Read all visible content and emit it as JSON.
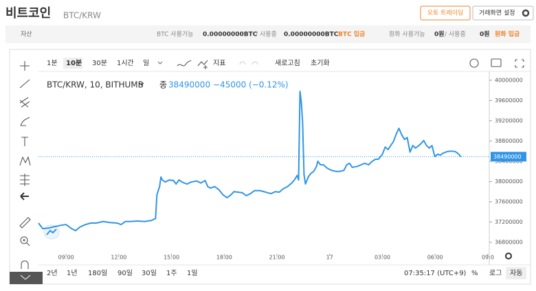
{
  "header": {
    "title": "비트코인",
    "subtitle": "BTC/KRW",
    "buttons": [
      "오토 트레이딩",
      "거래화면 설정"
    ]
  },
  "assets": {
    "label": "자산",
    "btc_available_label": "BTC 사용가능",
    "btc_available": "0.00000000BTC",
    "btc_in_use_label": "/ 사용중",
    "btc_in_use": "0.00000000BTC",
    "btc_deposit": "BTC 입금",
    "krw_available_label": "원화 사용가능",
    "krw_available": "0원",
    "krw_in_use_label": "/ 사용중",
    "krw_in_use": "0원",
    "krw_deposit": "원화 입금"
  },
  "toolbar": {
    "intervals": [
      "1분",
      "10분",
      "30분",
      "1시간",
      "일"
    ],
    "indicators": "지표",
    "refresh": "새로고침",
    "reset": "초기화"
  },
  "chart": {
    "type": "line",
    "legend": "BTC/KRW, 10, BITHUMB",
    "close_label": "종",
    "close": 38490000,
    "change": "−45000 (−0.12%)",
    "color": "#2f95e6",
    "xlim": [
      7.43,
      33.08
    ],
    "ylim": [
      36570000,
      40120000
    ],
    "xticks": [
      {
        "value": 9,
        "label": "09:00"
      },
      {
        "value": 12,
        "label": "12:00"
      },
      {
        "value": 15,
        "label": "15:00"
      },
      {
        "value": 18,
        "label": "18:00"
      },
      {
        "value": 21,
        "label": "21:00"
      },
      {
        "value": 24,
        "label": "17"
      },
      {
        "value": 27,
        "label": "03:00"
      },
      {
        "value": 30,
        "label": "06:00"
      },
      {
        "value": 33,
        "label": "09:0"
      }
    ],
    "yticks": [
      36800000,
      37200000,
      37600000,
      38000000,
      38400000,
      38800000,
      39200000,
      39600000,
      40000000
    ],
    "x": [
      7.43,
      7.67,
      7.98,
      8.37,
      8.77,
      9.0,
      9.31,
      9.55,
      9.78,
      10.1,
      10.41,
      10.72,
      11.11,
      11.5,
      11.9,
      12.13,
      12.37,
      12.68,
      13.07,
      13.46,
      13.85,
      14.09,
      14.17,
      14.32,
      14.4,
      14.48,
      14.64,
      14.87,
      15.11,
      15.26,
      15.42,
      15.65,
      15.89,
      16.12,
      16.44,
      16.67,
      16.91,
      17.06,
      17.22,
      17.45,
      17.69,
      17.92,
      18.16,
      18.39,
      18.55,
      18.78,
      19.02,
      19.25,
      19.49,
      19.72,
      20.04,
      20.35,
      20.66,
      20.9,
      21.13,
      21.37,
      21.6,
      21.84,
      21.99,
      22.15,
      22.23,
      22.31,
      22.39,
      22.46,
      22.54,
      22.62,
      22.78,
      22.93,
      23.09,
      23.25,
      23.32,
      23.48,
      23.64,
      23.87,
      24.11,
      24.34,
      24.58,
      24.81,
      24.97,
      25.13,
      25.28,
      25.59,
      25.99,
      26.22,
      26.38,
      26.61,
      26.77,
      27.0,
      27.16,
      27.32,
      27.47,
      27.63,
      27.79,
      27.94,
      28.1,
      28.26,
      28.41,
      28.57,
      28.73,
      28.88,
      29.04,
      29.2,
      29.35,
      29.51,
      29.67,
      29.82,
      29.98,
      30.14,
      30.29,
      30.45,
      30.68,
      30.92,
      31.15,
      31.31,
      31.47
    ],
    "values": [
      37180000,
      37070000,
      37080000,
      37110000,
      37140000,
      37150000,
      37070000,
      37030000,
      37100000,
      37150000,
      37180000,
      37180000,
      37210000,
      37190000,
      37180000,
      37150000,
      37210000,
      37210000,
      37220000,
      37210000,
      37230000,
      37270000,
      37740000,
      37900000,
      38090000,
      38030000,
      37990000,
      38030000,
      38020000,
      37950000,
      38030000,
      37980000,
      37950000,
      37990000,
      38010000,
      37970000,
      38020000,
      37900000,
      37870000,
      37900000,
      37840000,
      37740000,
      37680000,
      37740000,
      37800000,
      37790000,
      37780000,
      37720000,
      37760000,
      37820000,
      37820000,
      37790000,
      37760000,
      37800000,
      37790000,
      37860000,
      37900000,
      37970000,
      38030000,
      38120000,
      38030000,
      39780000,
      39550000,
      39150000,
      38130000,
      37950000,
      38090000,
      38160000,
      38200000,
      38300000,
      38400000,
      38330000,
      38330000,
      38260000,
      38220000,
      38200000,
      38200000,
      38220000,
      38330000,
      38360000,
      38280000,
      38300000,
      38360000,
      38330000,
      38390000,
      38440000,
      38440000,
      38540000,
      38680000,
      38630000,
      38710000,
      38790000,
      38940000,
      39050000,
      38920000,
      38830000,
      38870000,
      38580000,
      38710000,
      38660000,
      38700000,
      38750000,
      38810000,
      38710000,
      38660000,
      38710000,
      38490000,
      38540000,
      38520000,
      38560000,
      38590000,
      38600000,
      38590000,
      38550000,
      38490000
    ]
  },
  "footer": {
    "ranges": [
      "2년",
      "1년",
      "180일",
      "90일",
      "30일",
      "1주",
      "1일"
    ],
    "time": "07:35:17 (UTC+9)",
    "options": [
      "%",
      "로그",
      "자동"
    ]
  }
}
